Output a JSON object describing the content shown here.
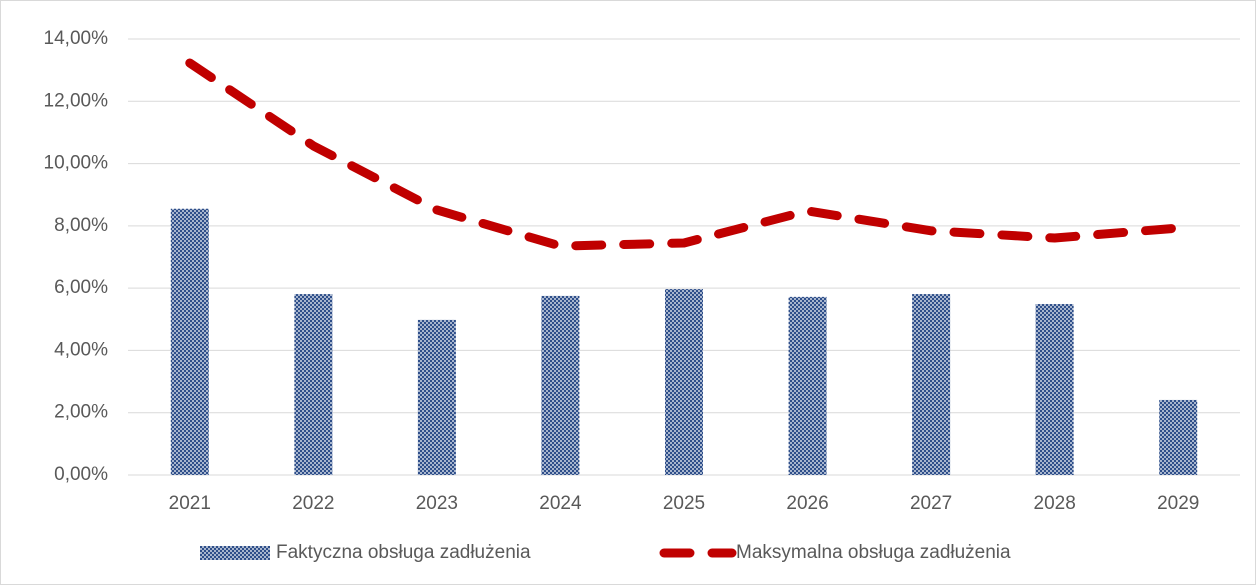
{
  "chart_data": {
    "type": "bar",
    "categories": [
      "2021",
      "2022",
      "2023",
      "2024",
      "2025",
      "2026",
      "2027",
      "2028",
      "2029"
    ],
    "series": [
      {
        "name": "Faktyczna obsługa zadłużenia",
        "type": "bar",
        "color": "#2f4f8a",
        "values": [
          8.55,
          5.81,
          4.98,
          5.75,
          5.97,
          5.72,
          5.81,
          5.49,
          2.41
        ]
      },
      {
        "name": "Maksymalna obsługa zadłużenia",
        "type": "line",
        "color": "#c00000",
        "values": [
          13.23,
          10.57,
          8.51,
          7.35,
          7.45,
          8.48,
          7.84,
          7.61,
          7.93
        ]
      }
    ],
    "ylim": [
      0,
      14
    ],
    "yticks": [
      {
        "value": 0,
        "label": "0,00%"
      },
      {
        "value": 2,
        "label": "2,00%"
      },
      {
        "value": 4,
        "label": "4,00%"
      },
      {
        "value": 6,
        "label": "6,00%"
      },
      {
        "value": 8,
        "label": "8,00%"
      },
      {
        "value": 10,
        "label": "10,00%"
      },
      {
        "value": 12,
        "label": "12,00%"
      },
      {
        "value": 14,
        "label": "14,00%"
      }
    ],
    "grid": true,
    "legend": "bottom"
  }
}
